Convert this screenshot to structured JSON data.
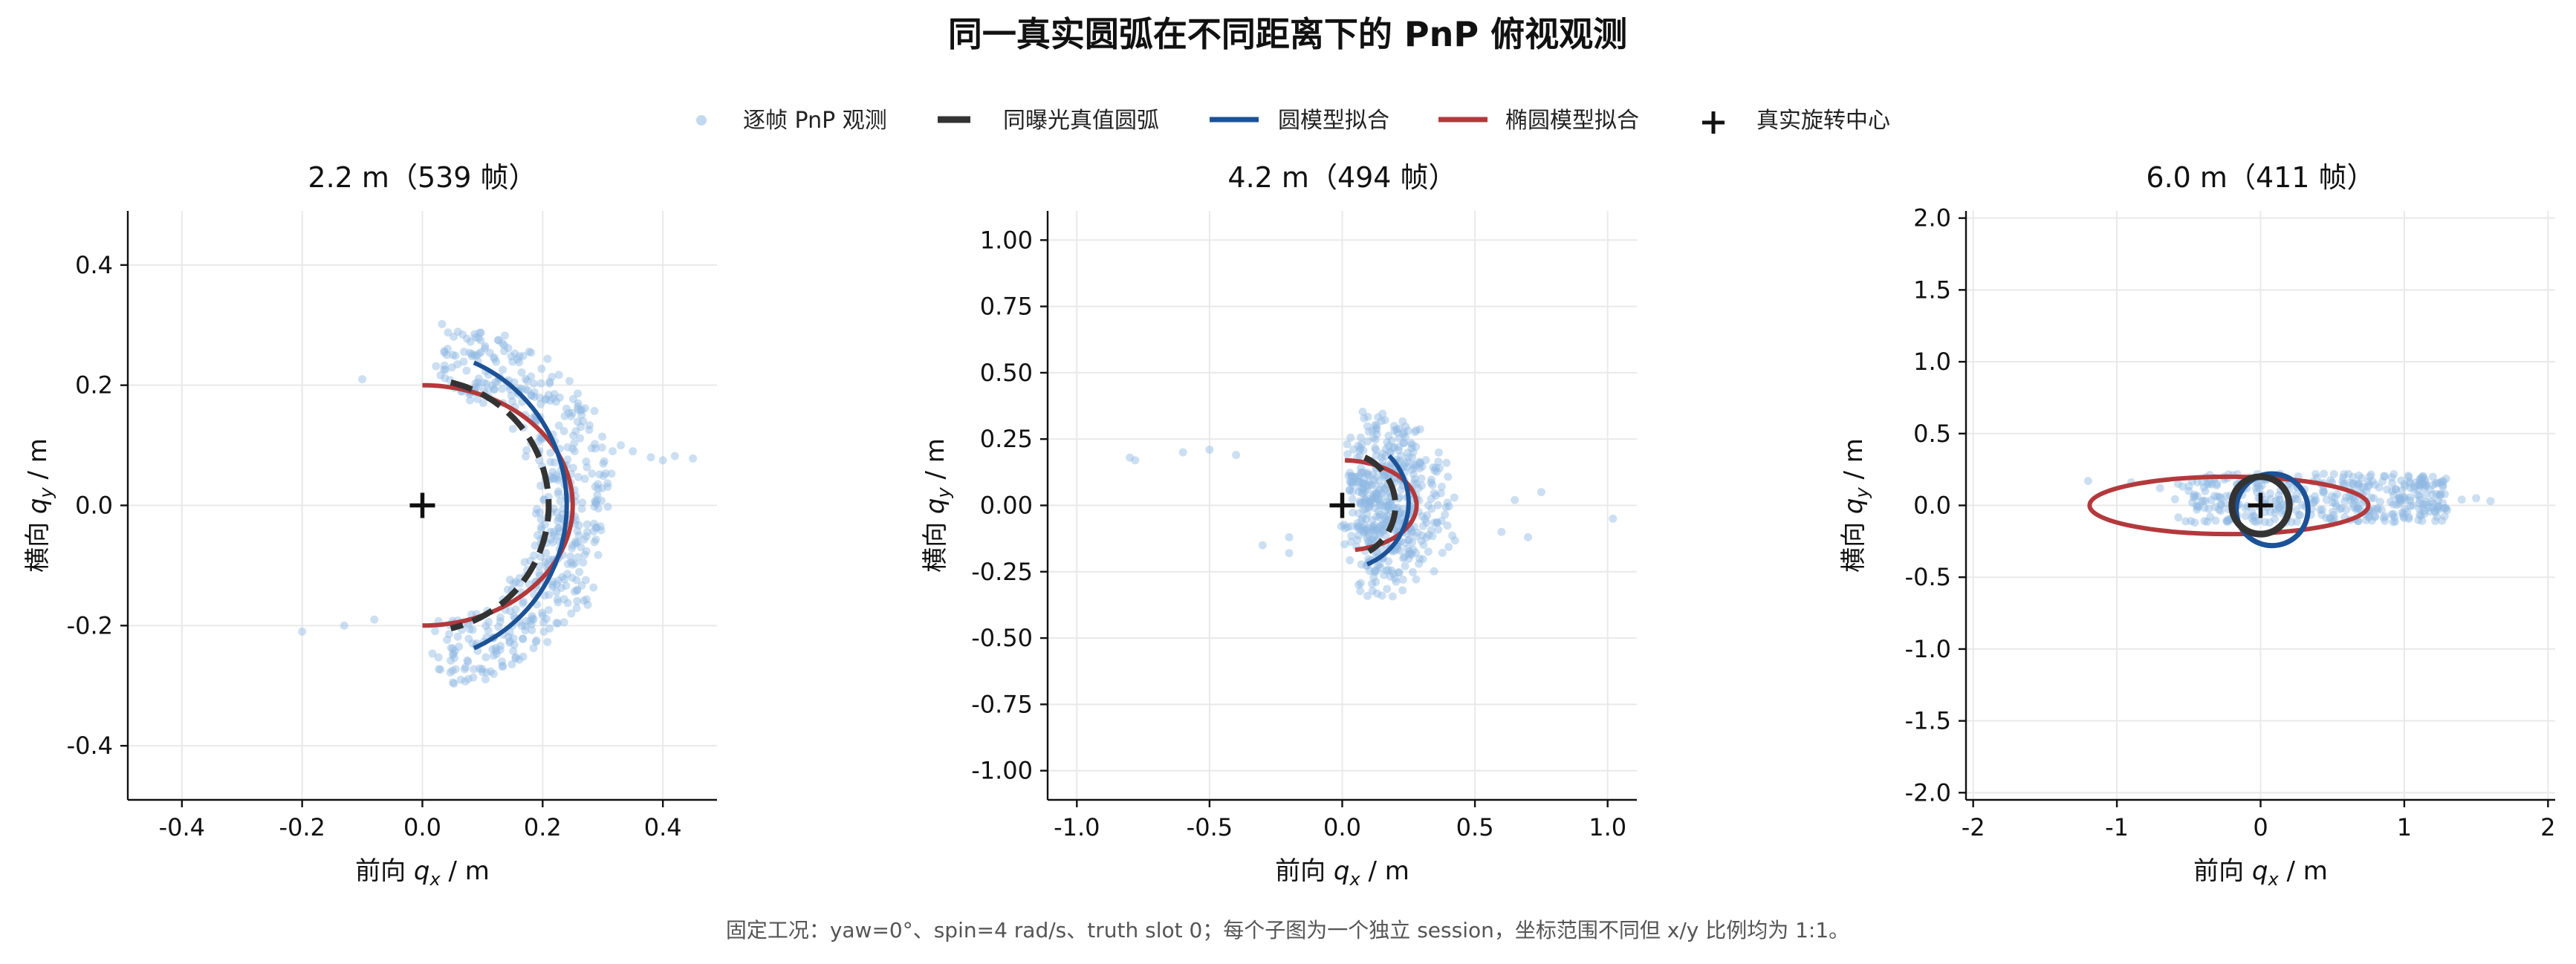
{
  "figure": {
    "title": "同一真实圆弧在不同距离下的 PnP 俯视观测",
    "caption": "固定工况：yaw=0°、spin=4 rad/s、truth slot 0；每个子图为一个独立 session，坐标范围不同但 x/y 比例均为 1:1。"
  },
  "legend": [
    {
      "key": "obs",
      "label": "逐帧 PnP 观测",
      "color": "#8fb8e3",
      "marker": "dot"
    },
    {
      "key": "truth",
      "label": "同曝光真值圆弧",
      "color": "#333333",
      "marker": "dash"
    },
    {
      "key": "circle",
      "label": "圆模型拟合",
      "color": "#1c5296",
      "marker": "line"
    },
    {
      "key": "ellipse",
      "label": "椭圆模型拟合",
      "color": "#b3393c",
      "marker": "line"
    },
    {
      "key": "center",
      "label": "真实旋转中心",
      "color": "#111111",
      "marker": "plus"
    }
  ],
  "colors": {
    "obs": "#8fb8e3",
    "truth": "#333333",
    "circle": "#1c5296",
    "ellipse": "#b3393c",
    "center": "#111111"
  },
  "chart_data": [
    {
      "type": "scatter",
      "title": "2.2 m（539 帧）",
      "frames": 539,
      "xlabel_main": "前向 ",
      "xlabel_var": "q",
      "xlabel_sub": "x",
      "xlabel_unit": " / m",
      "ylabel_main": "横向 ",
      "ylabel_var": "q",
      "ylabel_sub": "y",
      "ylabel_unit": " / m",
      "xlim": [
        -0.49,
        0.49
      ],
      "ylim": [
        -0.49,
        0.49
      ],
      "xticks": [
        -0.4,
        -0.2,
        0.0,
        0.2,
        0.4
      ],
      "yticks": [
        -0.4,
        -0.2,
        0.0,
        0.2,
        0.4
      ],
      "xtick_labels": [
        "-0.4",
        "-0.2",
        "0.0",
        "0.2",
        "0.4"
      ],
      "ytick_labels": [
        "-0.4",
        "-0.2",
        "0.0",
        "0.2",
        "0.4"
      ],
      "center": [
        0,
        0
      ],
      "truth_arc": {
        "cx": 0,
        "cy": 0,
        "r": 0.21,
        "a_start": 77,
        "a_end": -77
      },
      "circle_fit": {
        "cx": -0.02,
        "cy": 0.0,
        "r": 0.26,
        "a_start": 66,
        "a_end": -66
      },
      "ellipse_fit": {
        "cx": 0.0,
        "cy": 0.0,
        "a": 0.25,
        "b": 0.2,
        "a_start": 90,
        "a_end": -90
      },
      "obs_band": {
        "r": 0.25,
        "spread": 0.055,
        "a_min": -85,
        "a_max": 85
      },
      "obs_extra": [
        [
          -0.2,
          -0.21
        ],
        [
          -0.1,
          0.21
        ],
        [
          0.45,
          0.078
        ],
        [
          0.42,
          0.082
        ],
        [
          0.4,
          0.075
        ],
        [
          0.38,
          0.08
        ],
        [
          0.35,
          0.09
        ],
        [
          0.33,
          0.1
        ],
        [
          -0.13,
          -0.2
        ],
        [
          -0.08,
          -0.19
        ]
      ]
    },
    {
      "type": "scatter",
      "title": "4.2 m（494 帧）",
      "frames": 494,
      "xlabel_main": "前向 ",
      "xlabel_var": "q",
      "xlabel_sub": "x",
      "xlabel_unit": " / m",
      "ylabel_main": "横向 ",
      "ylabel_var": "q",
      "ylabel_sub": "y",
      "ylabel_unit": " / m",
      "xlim": [
        -1.11,
        1.11
      ],
      "ylim": [
        -1.11,
        1.11
      ],
      "xticks": [
        -1.0,
        -0.5,
        0.0,
        0.5,
        1.0
      ],
      "yticks": [
        -1.0,
        -0.75,
        -0.5,
        -0.25,
        0.0,
        0.25,
        0.5,
        0.75,
        1.0
      ],
      "xtick_labels": [
        "-1.0",
        "-0.5",
        "0.0",
        "0.5",
        "1.0"
      ],
      "ytick_labels": [
        "-1.00",
        "-0.75",
        "-0.50",
        "-0.25",
        "0.00",
        "0.25",
        "0.50",
        "0.75",
        "1.00"
      ],
      "center": [
        0,
        0
      ],
      "truth_arc": {
        "cx": 0,
        "cy": 0,
        "r": 0.2,
        "a_start": 65,
        "a_end": -60
      },
      "circle_fit": {
        "cx": 0.0,
        "cy": 0.01,
        "r": 0.25,
        "a_start": 45,
        "a_end": -68
      },
      "ellipse_fit": {
        "cx": 0.0,
        "cy": 0.0,
        "a": 0.28,
        "b": 0.17,
        "a_start": 88,
        "a_end": -80
      },
      "obs_band": {
        "r": 0.22,
        "spread": 0.15,
        "a_min": -80,
        "a_max": 80
      },
      "obs_extra": [
        [
          -0.8,
          0.18
        ],
        [
          -0.78,
          0.17
        ],
        [
          -0.6,
          0.2
        ],
        [
          -0.5,
          0.21
        ],
        [
          -0.4,
          0.19
        ],
        [
          1.02,
          -0.05
        ],
        [
          0.75,
          0.05
        ],
        [
          0.65,
          0.02
        ],
        [
          -0.3,
          -0.15
        ],
        [
          -0.2,
          -0.12
        ],
        [
          -0.2,
          -0.18
        ],
        [
          0.6,
          -0.1
        ],
        [
          0.7,
          -0.12
        ]
      ]
    },
    {
      "type": "scatter",
      "title": "6.0 m（411 帧）",
      "frames": 411,
      "xlabel_main": "前向 ",
      "xlabel_var": "q",
      "xlabel_sub": "x",
      "xlabel_unit": " / m",
      "ylabel_main": "横向 ",
      "ylabel_var": "q",
      "ylabel_sub": "y",
      "ylabel_unit": " / m",
      "xlim": [
        -2.05,
        2.05
      ],
      "ylim": [
        -2.05,
        2.05
      ],
      "xticks": [
        -2,
        -1,
        0,
        1,
        2
      ],
      "yticks": [
        -2.0,
        -1.5,
        -1.0,
        -0.5,
        0.0,
        0.5,
        1.0,
        1.5,
        2.0
      ],
      "xtick_labels": [
        "-2",
        "-1",
        "0",
        "1",
        "2"
      ],
      "ytick_labels": [
        "-2.0",
        "-1.5",
        "-1.0",
        "-0.5",
        "0.0",
        "0.5",
        "1.0",
        "1.5",
        "2.0"
      ],
      "center": [
        0,
        0
      ],
      "truth_circle": {
        "cx": 0,
        "cy": 0,
        "r": 0.2
      },
      "circle_fit": {
        "cx": 0.08,
        "cy": -0.03,
        "r": 0.25
      },
      "ellipse_fit": {
        "cx": -0.22,
        "cy": 0.0,
        "a": 0.97,
        "b": 0.2
      },
      "obs_cloud": {
        "x_min": -0.6,
        "x_max": 1.3,
        "y_min": -0.12,
        "y_max": 0.22
      },
      "obs_extra": [
        [
          -1.2,
          0.17
        ],
        [
          -0.9,
          0.16
        ],
        [
          1.6,
          0.03
        ],
        [
          1.5,
          0.05
        ],
        [
          1.4,
          0.04
        ],
        [
          -0.5,
          0.1
        ],
        [
          -0.7,
          0.12
        ]
      ]
    }
  ]
}
